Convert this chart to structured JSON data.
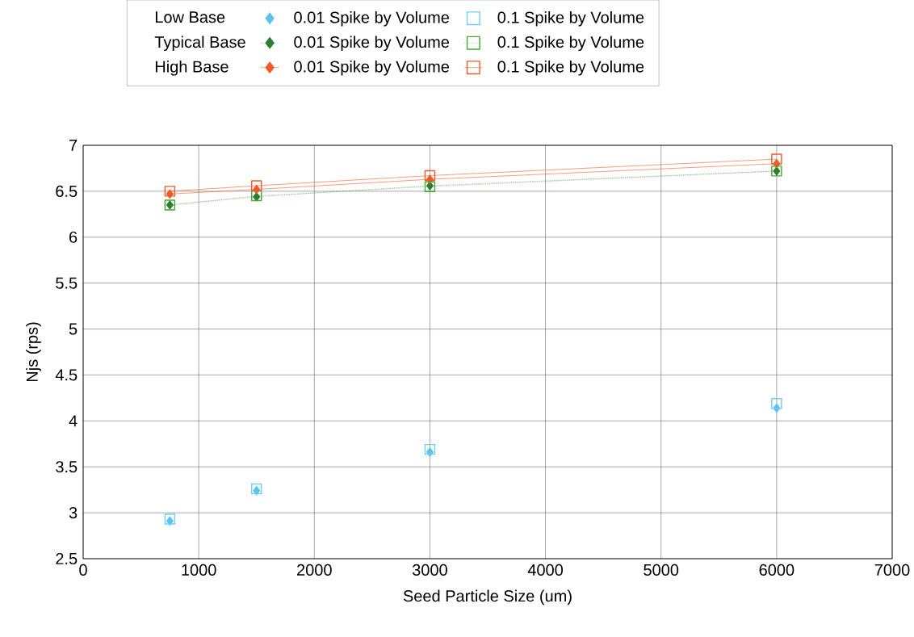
{
  "chart_data": {
    "type": "scatter",
    "xlabel": "Seed Particle Size (um)",
    "ylabel": "Njs (rps)",
    "xlim": [
      0,
      7000
    ],
    "ylim": [
      2.5,
      7
    ],
    "xticks": [
      0,
      1000,
      2000,
      3000,
      4000,
      5000,
      6000,
      7000
    ],
    "yticks": [
      2.5,
      3,
      3.5,
      4,
      4.5,
      5,
      5.5,
      6,
      6.5,
      7
    ],
    "grid": true,
    "legend": "top",
    "annotations": [
      "Low Base",
      "Typical Base",
      "High Base"
    ],
    "x": [
      750,
      1500,
      3000,
      6000
    ],
    "series": [
      {
        "name": "0.01 Spike by Volume",
        "marker": "diamond",
        "color": "#5bc3ee",
        "values": [
          2.91,
          3.24,
          3.66,
          4.14
        ]
      },
      {
        "name": "0.01 Spike by Volume",
        "type": "line",
        "marker": "diamond",
        "line_style": "dotted",
        "color": "#2e7d32",
        "values": [
          6.35,
          6.44,
          6.56,
          6.72
        ]
      },
      {
        "name": "0.01 Spike by Volume",
        "type": "line",
        "marker": "diamond",
        "line_style": "solid",
        "color": "#f05a28",
        "values": [
          6.47,
          6.52,
          6.63,
          6.8
        ]
      },
      {
        "name": "0.1 Spike by Volume",
        "marker": "square",
        "color": "#6fcff5",
        "values": [
          2.93,
          3.26,
          3.69,
          4.19
        ]
      },
      {
        "name": "0.1 Spike by Volume",
        "type": "line",
        "marker": "square",
        "line_style": "dotted",
        "color": "#44a832",
        "values": [
          6.35,
          6.45,
          6.55,
          6.72
        ]
      },
      {
        "name": "0.1 Spike by Volume",
        "type": "line",
        "marker": "square",
        "line_style": "solid",
        "color": "#f05a28",
        "values": [
          6.5,
          6.56,
          6.67,
          6.85
        ]
      }
    ]
  }
}
